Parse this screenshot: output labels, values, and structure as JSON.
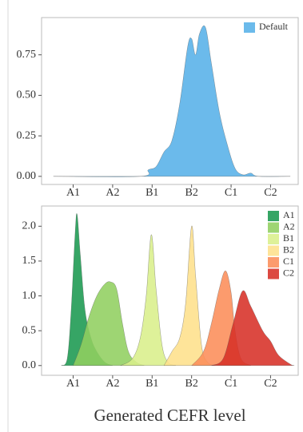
{
  "chart_data": [
    {
      "type": "area",
      "legend": "top-right",
      "xlim": [
        0.2,
        6.7
      ],
      "ylim": [
        -0.05,
        0.98
      ],
      "xticks": [
        {
          "value": 1,
          "label": "A1"
        },
        {
          "value": 2,
          "label": "A2"
        },
        {
          "value": 3,
          "label": "B1"
        },
        {
          "value": 4,
          "label": "B2"
        },
        {
          "value": 5,
          "label": "C1"
        },
        {
          "value": 6,
          "label": "C2"
        }
      ],
      "yticks": [
        {
          "value": 0,
          "label": "0.00"
        },
        {
          "value": 0.25,
          "label": "0.25"
        },
        {
          "value": 0.5,
          "label": "0.50"
        },
        {
          "value": 0.75,
          "label": "0.75"
        }
      ],
      "series": [
        {
          "name": "Default",
          "color": "#56b1e8",
          "x": [
            0.5,
            2.7,
            2.9,
            3.1,
            3.3,
            3.5,
            3.7,
            3.9,
            4.0,
            4.1,
            4.2,
            4.35,
            4.5,
            4.7,
            4.9,
            5.1,
            5.3,
            5.5,
            5.7,
            6.5
          ],
          "values": [
            0,
            0,
            0.04,
            0.06,
            0.15,
            0.22,
            0.45,
            0.8,
            0.85,
            0.75,
            0.88,
            0.92,
            0.7,
            0.4,
            0.2,
            0.05,
            0.01,
            0.02,
            0,
            0
          ]
        }
      ]
    },
    {
      "type": "area",
      "legend": "top-right",
      "xlabel": "Generated CEFR level",
      "xlim": [
        0.2,
        6.7
      ],
      "ylim": [
        -0.14,
        2.29
      ],
      "xticks": [
        {
          "value": 1,
          "label": "A1"
        },
        {
          "value": 2,
          "label": "A2"
        },
        {
          "value": 3,
          "label": "B1"
        },
        {
          "value": 4,
          "label": "B2"
        },
        {
          "value": 5,
          "label": "C1"
        },
        {
          "value": 6,
          "label": "C2"
        }
      ],
      "yticks": [
        {
          "value": 0,
          "label": "0.0"
        },
        {
          "value": 0.5,
          "label": "0.5"
        },
        {
          "value": 1,
          "label": "1.0"
        },
        {
          "value": 1.5,
          "label": "1.5"
        },
        {
          "value": 2,
          "label": "2.0"
        }
      ],
      "series": [
        {
          "name": "A1",
          "color": "#1a9850",
          "x": [
            0.7,
            0.85,
            0.95,
            1.05,
            1.1,
            1.18,
            1.3,
            1.45,
            1.6,
            1.8,
            2.0
          ],
          "values": [
            0,
            0.1,
            0.8,
            1.9,
            2.17,
            1.6,
            0.8,
            0.4,
            0.2,
            0.05,
            0
          ]
        },
        {
          "name": "A2",
          "color": "#91cf60",
          "x": [
            1.0,
            1.2,
            1.4,
            1.6,
            1.8,
            1.95,
            2.1,
            2.25,
            2.4,
            2.6,
            2.8
          ],
          "values": [
            0,
            0.3,
            0.7,
            1.0,
            1.17,
            1.2,
            1.1,
            0.6,
            0.2,
            0.05,
            0
          ]
        },
        {
          "name": "B1",
          "color": "#d9ef8b",
          "x": [
            2.2,
            2.5,
            2.7,
            2.85,
            2.98,
            3.1,
            3.25,
            3.4,
            3.6
          ],
          "values": [
            0,
            0.1,
            0.4,
            1.0,
            1.88,
            1.1,
            0.3,
            0.05,
            0
          ]
        },
        {
          "name": "B2",
          "color": "#fee08b",
          "x": [
            3.3,
            3.5,
            3.7,
            3.85,
            4.0,
            4.1,
            4.25,
            4.4,
            4.6
          ],
          "values": [
            0,
            0.2,
            0.4,
            0.9,
            2.0,
            1.3,
            0.3,
            0.05,
            0
          ]
        },
        {
          "name": "C1",
          "color": "#fc8d59",
          "x": [
            4.0,
            4.3,
            4.5,
            4.7,
            4.86,
            5.0,
            5.1,
            5.25,
            5.5
          ],
          "values": [
            0,
            0.2,
            0.6,
            1.1,
            1.36,
            1.05,
            0.5,
            0.1,
            0
          ]
        },
        {
          "name": "C2",
          "color": "#d73027",
          "x": [
            4.5,
            4.8,
            5.05,
            5.29,
            5.5,
            5.8,
            6.0,
            6.2,
            6.5,
            6.6
          ],
          "values": [
            0,
            0.1,
            0.6,
            1.07,
            0.85,
            0.5,
            0.35,
            0.15,
            0.02,
            0
          ]
        }
      ]
    }
  ]
}
